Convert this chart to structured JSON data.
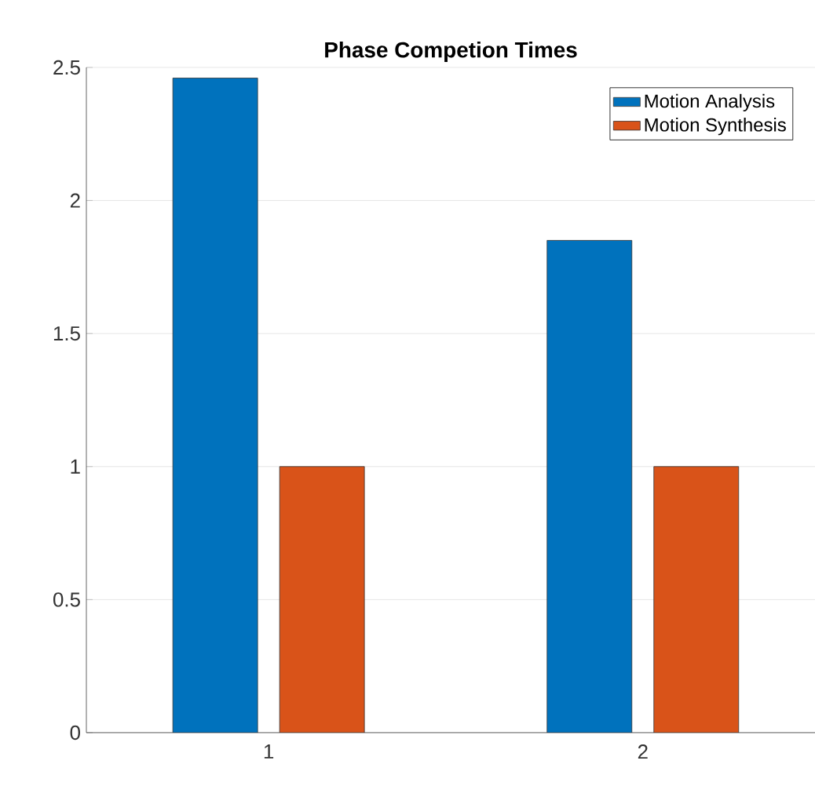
{
  "chart_data": {
    "type": "bar",
    "title": "Phase Competion Times",
    "categories": [
      "1",
      "2"
    ],
    "series": [
      {
        "name": "Motion Analysis",
        "color": "#0072bd",
        "values": [
          2.46,
          1.85
        ]
      },
      {
        "name": "Motion Synthesis",
        "color": "#d95319",
        "values": [
          1,
          1
        ]
      }
    ],
    "ylim": [
      0,
      2.5
    ],
    "yticks": [
      0,
      0.5,
      1,
      1.5,
      2,
      2.5
    ],
    "grid": "y",
    "legend": "top right"
  }
}
